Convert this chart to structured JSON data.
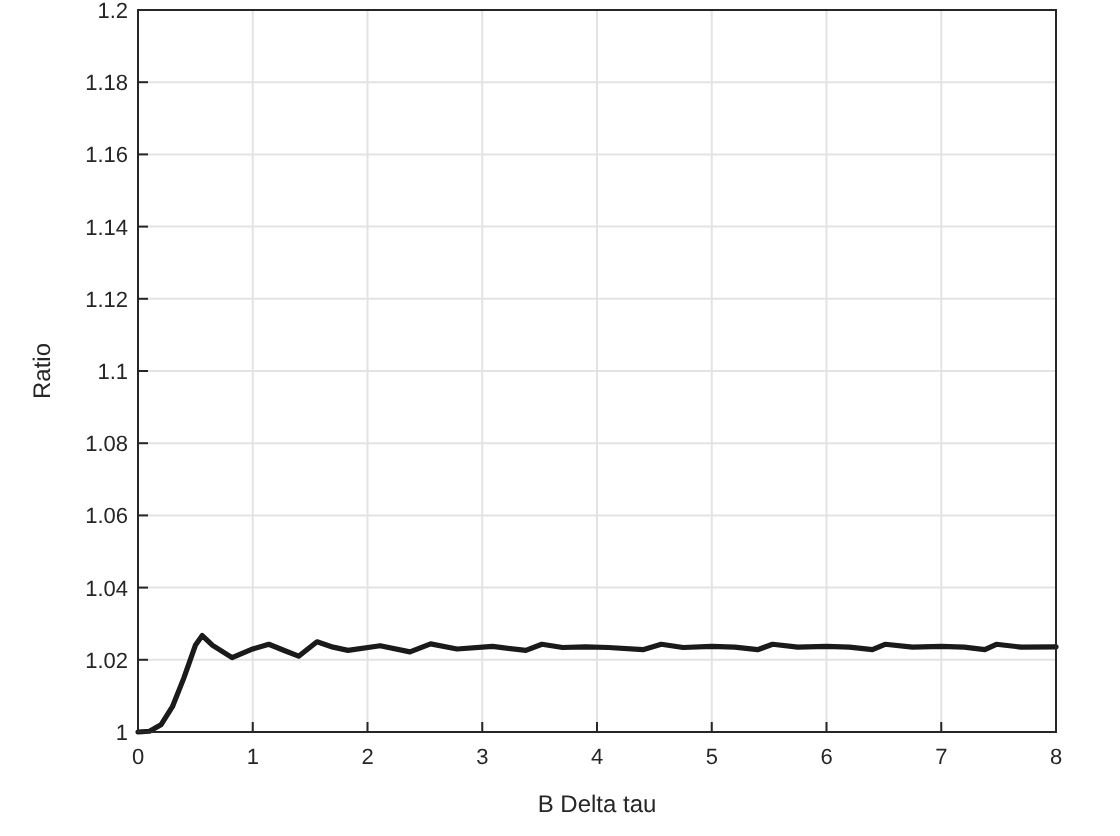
{
  "chart_data": {
    "type": "line",
    "xlabel": "B Delta tau",
    "ylabel": "Ratio",
    "xlim": [
      0,
      8
    ],
    "ylim": [
      1,
      1.2
    ],
    "xticks": [
      0,
      1,
      2,
      3,
      4,
      5,
      6,
      7,
      8
    ],
    "yticks": [
      1,
      1.02,
      1.04,
      1.06,
      1.08,
      1.1,
      1.12,
      1.14,
      1.16,
      1.18,
      1.2
    ],
    "grid": true,
    "marker": "none",
    "line_style": "solid",
    "series": [
      {
        "color": "#1a1a1a",
        "x": [
          0,
          0.1,
          0.2,
          0.3,
          0.4,
          0.5,
          0.56,
          0.65,
          0.82,
          1.0,
          1.14,
          1.28,
          1.4,
          1.56,
          1.7,
          1.83,
          2.11,
          2.37,
          2.55,
          2.78,
          3.09,
          3.38,
          3.52,
          3.7,
          3.9,
          4.1,
          4.4,
          4.56,
          4.75,
          5.0,
          5.2,
          5.4,
          5.53,
          5.75,
          6.0,
          6.2,
          6.4,
          6.51,
          6.75,
          7.0,
          7.2,
          7.38,
          7.48,
          7.7,
          8.0
        ],
        "values": [
          1,
          1.0002,
          1.002,
          1.007,
          1.015,
          1.024,
          1.0267,
          1.024,
          1.0206,
          1.023,
          1.0243,
          1.0225,
          1.021,
          1.025,
          1.0235,
          1.0226,
          1.0239,
          1.0222,
          1.0244,
          1.023,
          1.0237,
          1.0226,
          1.0243,
          1.0234,
          1.0236,
          1.0234,
          1.0228,
          1.0243,
          1.0234,
          1.0237,
          1.0235,
          1.0228,
          1.0243,
          1.0235,
          1.0237,
          1.0235,
          1.0228,
          1.0243,
          1.0235,
          1.0237,
          1.0235,
          1.0228,
          1.0243,
          1.0235,
          1.0236
        ]
      }
    ]
  }
}
